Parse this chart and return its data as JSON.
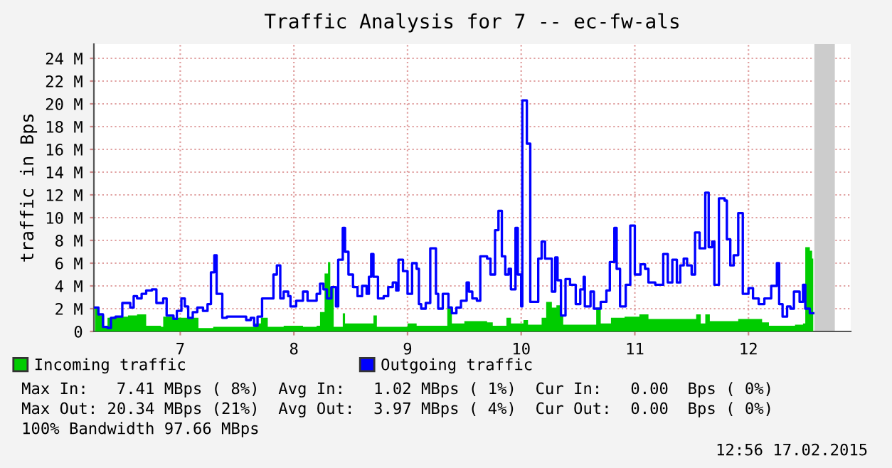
{
  "chart_data": {
    "type": "step",
    "title": "Traffic Analysis for 7 -- ec-fw-als",
    "ylabel": "traffic in Bps",
    "xlim": [
      6.24,
      12.9
    ],
    "xticks": [
      7,
      8,
      9,
      10,
      11,
      12
    ],
    "ylim": [
      0,
      25.25
    ],
    "yticks": [
      {
        "value": 0,
        "label": "0"
      },
      {
        "value": 2,
        "label": "2 M"
      },
      {
        "value": 4,
        "label": "4 M"
      },
      {
        "value": 6,
        "label": "6 M"
      },
      {
        "value": 8,
        "label": "8 M"
      },
      {
        "value": 10,
        "label": "10 M"
      },
      {
        "value": 12,
        "label": "12 M"
      },
      {
        "value": 14,
        "label": "14 M"
      },
      {
        "value": 16,
        "label": "16 M"
      },
      {
        "value": 18,
        "label": "18 M"
      },
      {
        "value": 20,
        "label": "20 M"
      },
      {
        "value": 22,
        "label": "22 M"
      },
      {
        "value": 24,
        "label": "24 M"
      }
    ],
    "grid": true,
    "legend": "bottom",
    "bands": [
      {
        "axis": "x",
        "from": 12.58,
        "to": 12.76,
        "color": "#cccccc"
      }
    ],
    "series": [
      {
        "name": "Incoming traffic",
        "type": "area",
        "color": "#00cc00",
        "x": [
          6.25,
          6.29,
          6.33,
          6.36,
          6.41,
          6.5,
          6.54,
          6.62,
          6.7,
          6.83,
          6.85,
          6.95,
          7.16,
          7.29,
          7.41,
          7.66,
          7.71,
          7.77,
          7.91,
          8.08,
          8.2,
          8.23,
          8.27,
          8.3,
          8.32,
          8.35,
          8.43,
          8.45,
          8.7,
          8.73,
          9.0,
          9.08,
          9.35,
          9.39,
          9.5,
          9.7,
          9.75,
          9.87,
          9.91,
          10.02,
          10.06,
          10.18,
          10.22,
          10.27,
          10.31,
          10.34,
          10.37,
          10.66,
          10.7,
          10.79,
          10.91,
          11.04,
          11.12,
          11.54,
          11.58,
          11.62,
          11.66,
          11.91,
          12.12,
          12.18,
          12.41,
          12.48,
          12.5,
          12.54,
          12.56,
          12.57
        ],
        "values": [
          2.1,
          1.4,
          0.5,
          1.2,
          1.3,
          1.3,
          1.4,
          1.5,
          0.5,
          0.4,
          1.3,
          1.2,
          0.3,
          0.4,
          0.4,
          0.7,
          1.2,
          0.4,
          0.5,
          0.4,
          0.5,
          1.7,
          5.1,
          6.1,
          3.9,
          0.4,
          1.6,
          0.7,
          1.4,
          0.4,
          0.7,
          0.5,
          2.2,
          0.7,
          0.9,
          0.8,
          0.5,
          1.2,
          0.7,
          1.0,
          0.6,
          1.2,
          2.6,
          2.1,
          2.3,
          1.4,
          0.6,
          2.1,
          0.7,
          1.2,
          1.3,
          1.5,
          1.1,
          1.5,
          0.7,
          1.5,
          0.9,
          1.1,
          0.8,
          0.5,
          0.6,
          0.7,
          7.4,
          7.1,
          6.4,
          6.4
        ]
      },
      {
        "name": "Outgoing traffic",
        "color": "#0000ff",
        "x": [
          6.25,
          6.28,
          6.32,
          6.36,
          6.39,
          6.43,
          6.49,
          6.56,
          6.59,
          6.62,
          6.66,
          6.7,
          6.75,
          6.79,
          6.85,
          6.88,
          6.94,
          6.97,
          7.01,
          7.04,
          7.07,
          7.11,
          7.15,
          7.2,
          7.24,
          7.27,
          7.3,
          7.32,
          7.37,
          7.41,
          7.54,
          7.58,
          7.62,
          7.65,
          7.68,
          7.72,
          7.77,
          7.82,
          7.85,
          7.88,
          7.91,
          7.95,
          7.97,
          8.02,
          8.08,
          8.12,
          8.2,
          8.23,
          8.26,
          8.29,
          8.33,
          8.37,
          8.39,
          8.43,
          8.45,
          8.48,
          8.52,
          8.56,
          8.6,
          8.64,
          8.66,
          8.68,
          8.7,
          8.74,
          8.79,
          8.83,
          8.87,
          8.9,
          8.92,
          8.96,
          9.0,
          9.04,
          9.08,
          9.1,
          9.12,
          9.16,
          9.2,
          9.25,
          9.27,
          9.31,
          9.36,
          9.39,
          9.43,
          9.47,
          9.52,
          9.54,
          9.57,
          9.61,
          9.64,
          9.7,
          9.73,
          9.77,
          9.8,
          9.83,
          9.86,
          9.89,
          9.91,
          9.95,
          9.97,
          10.0,
          10.01,
          10.05,
          10.08,
          10.15,
          10.18,
          10.21,
          10.27,
          10.3,
          10.32,
          10.35,
          10.39,
          10.43,
          10.48,
          10.52,
          10.55,
          10.56,
          10.61,
          10.64,
          10.7,
          10.75,
          10.78,
          10.82,
          10.84,
          10.87,
          10.92,
          10.96,
          11.0,
          11.05,
          11.09,
          11.12,
          11.18,
          11.25,
          11.29,
          11.33,
          11.37,
          11.4,
          11.43,
          11.46,
          11.5,
          11.53,
          11.57,
          11.62,
          11.65,
          11.68,
          11.7,
          11.74,
          11.79,
          11.81,
          11.84,
          11.87,
          11.91,
          11.95,
          12.0,
          12.04,
          12.09,
          12.14,
          12.2,
          12.25,
          12.27,
          12.3,
          12.34,
          12.37,
          12.4,
          12.45,
          12.48,
          12.5,
          12.54,
          12.57
        ],
        "values": [
          2.1,
          1.5,
          0.4,
          0.3,
          1.2,
          1.3,
          2.5,
          2.1,
          3.1,
          2.9,
          3.3,
          3.6,
          3.7,
          2.5,
          2.9,
          1.4,
          1.1,
          1.8,
          2.9,
          2.2,
          1.2,
          1.7,
          2.1,
          1.8,
          2.4,
          5.2,
          6.7,
          3.3,
          1.2,
          1.3,
          1.3,
          1.0,
          1.2,
          0.5,
          1.3,
          2.9,
          2.9,
          5.0,
          5.8,
          2.9,
          3.5,
          3.1,
          2.2,
          2.7,
          3.5,
          2.7,
          3.3,
          4.2,
          3.7,
          2.9,
          3.9,
          2.2,
          6.3,
          9.1,
          7.0,
          5.0,
          3.9,
          3.1,
          4.0,
          3.3,
          4.8,
          6.8,
          4.8,
          2.9,
          3.1,
          3.9,
          4.3,
          3.6,
          6.3,
          5.3,
          3.3,
          6.0,
          5.5,
          2.4,
          2.0,
          2.5,
          7.3,
          3.3,
          2.0,
          3.3,
          2.1,
          1.6,
          2.1,
          2.7,
          4.3,
          3.5,
          2.9,
          2.7,
          6.6,
          6.4,
          5.0,
          8.9,
          10.6,
          6.6,
          5.0,
          5.5,
          3.7,
          9.1,
          5.0,
          2.2,
          20.3,
          16.5,
          2.6,
          6.4,
          7.9,
          6.4,
          3.5,
          6.5,
          4.5,
          1.4,
          4.6,
          4.1,
          2.4,
          3.7,
          4.8,
          2.2,
          3.5,
          2.0,
          2.6,
          3.6,
          6.1,
          9.1,
          5.5,
          2.2,
          4.1,
          9.3,
          5.0,
          5.9,
          5.5,
          4.3,
          4.1,
          6.8,
          4.3,
          6.3,
          4.3,
          5.8,
          6.4,
          5.8,
          5.0,
          8.7,
          7.3,
          12.2,
          7.4,
          7.9,
          4.1,
          11.7,
          11.5,
          8.1,
          5.8,
          6.7,
          10.4,
          3.3,
          3.8,
          2.9,
          2.4,
          2.9,
          4.0,
          6.0,
          2.4,
          1.3,
          2.2,
          2.0,
          3.5,
          2.6,
          4.1,
          2.0,
          1.6,
          1.6
        ]
      }
    ],
    "annotations": [
      "Max In:   7.41 MBps ( 8%)  Avg In:   1.02 MBps ( 1%)  Cur In:   0.00  Bps ( 0%)",
      "Max Out: 20.34 MBps (21%)  Avg Out:  3.97 MBps ( 4%)  Cur Out:  0.00  Bps ( 0%)",
      "100% Bandwidth 97.66 MBps",
      "12:56 17.02.2015"
    ]
  }
}
